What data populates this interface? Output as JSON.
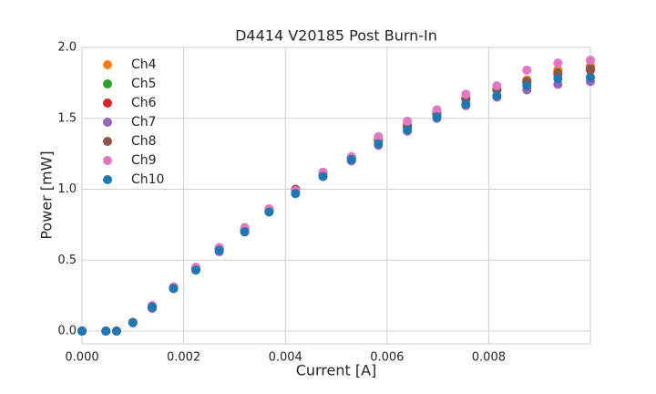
{
  "chart_data": {
    "type": "scatter",
    "title": "D4414 V20185 Post Burn-In",
    "xlabel": "Current [A]",
    "ylabel": "Power [mW]",
    "x": [
      0,
      0.00047,
      0.00068,
      0.001,
      0.00138,
      0.0018,
      0.00224,
      0.0027,
      0.0032,
      0.00368,
      0.0042,
      0.00474,
      0.0053,
      0.00583,
      0.0064,
      0.00698,
      0.00755,
      0.00816,
      0.00875,
      0.00936,
      0.01
    ],
    "series": [
      {
        "name": "Ch4",
        "color": "#ff7f0e",
        "values": [
          0,
          0,
          0,
          0.06,
          0.17,
          0.31,
          0.44,
          0.58,
          0.72,
          0.86,
          0.99,
          1.11,
          1.22,
          1.35,
          1.45,
          1.54,
          1.64,
          1.71,
          1.77,
          1.84,
          1.87
        ]
      },
      {
        "name": "Ch5",
        "color": "#2ca02c",
        "values": [
          0,
          0,
          0,
          0.06,
          0.17,
          0.31,
          0.44,
          0.58,
          0.72,
          0.85,
          0.99,
          1.11,
          1.22,
          1.34,
          1.44,
          1.53,
          1.63,
          1.7,
          1.76,
          1.82,
          1.85
        ]
      },
      {
        "name": "Ch6",
        "color": "#d62728",
        "values": [
          0,
          0,
          0,
          0.06,
          0.17,
          0.31,
          0.44,
          0.58,
          0.72,
          0.86,
          1.0,
          1.11,
          1.22,
          1.35,
          1.45,
          1.54,
          1.64,
          1.7,
          1.75,
          1.81,
          1.84
        ]
      },
      {
        "name": "Ch7",
        "color": "#9467bd",
        "values": [
          0,
          0,
          0,
          0.06,
          0.16,
          0.3,
          0.43,
          0.56,
          0.7,
          0.84,
          0.97,
          1.09,
          1.2,
          1.31,
          1.41,
          1.5,
          1.59,
          1.65,
          1.7,
          1.74,
          1.76
        ]
      },
      {
        "name": "Ch8",
        "color": "#8c564b",
        "values": [
          0,
          0,
          0,
          0.06,
          0.17,
          0.31,
          0.44,
          0.58,
          0.72,
          0.86,
          1.0,
          1.11,
          1.22,
          1.35,
          1.44,
          1.53,
          1.64,
          1.7,
          1.76,
          1.82,
          1.85
        ]
      },
      {
        "name": "Ch9",
        "color": "#e377c2",
        "values": [
          0,
          0,
          0,
          0.06,
          0.18,
          0.31,
          0.45,
          0.59,
          0.73,
          0.86,
          0.99,
          1.12,
          1.23,
          1.37,
          1.48,
          1.56,
          1.67,
          1.73,
          1.84,
          1.89,
          1.91
        ]
      },
      {
        "name": "Ch10",
        "color": "#1f77b4",
        "values": [
          0,
          0,
          0,
          0.06,
          0.17,
          0.3,
          0.43,
          0.57,
          0.7,
          0.84,
          0.97,
          1.09,
          1.21,
          1.32,
          1.42,
          1.51,
          1.6,
          1.66,
          1.73,
          1.78,
          1.79
        ]
      }
    ],
    "xlim": [
      0,
      0.01
    ],
    "ylim": [
      -0.09,
      2.0
    ],
    "xticks": [
      {
        "value": 0,
        "label": "0.000"
      },
      {
        "value": 0.002,
        "label": "0.002"
      },
      {
        "value": 0.004,
        "label": "0.004"
      },
      {
        "value": 0.006,
        "label": "0.006"
      },
      {
        "value": 0.008,
        "label": "0.008"
      }
    ],
    "yticks": [
      {
        "value": 0,
        "label": "0.0"
      },
      {
        "value": 0.5,
        "label": "0.5"
      },
      {
        "value": 1,
        "label": "1.0"
      },
      {
        "value": 1.5,
        "label": "1.5"
      },
      {
        "value": 2,
        "label": "2.0"
      }
    ],
    "grid": true,
    "legend": "upper left"
  }
}
